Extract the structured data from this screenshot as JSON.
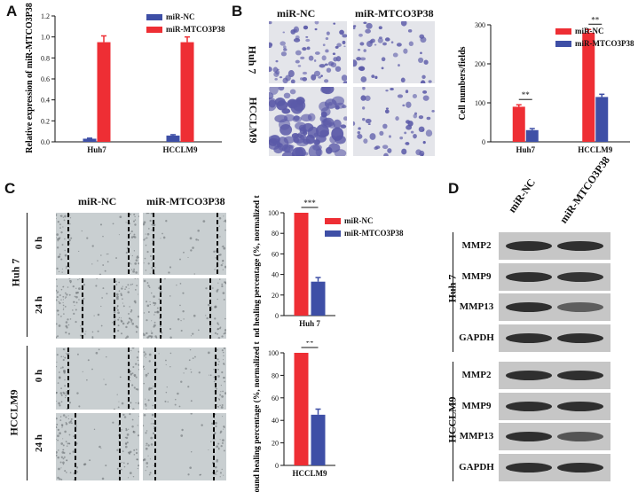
{
  "colors": {
    "red": "#ee2e34",
    "blue": "#3e4fa6",
    "stain": "#5b5aa8",
    "scratch": "#c9cfd1"
  },
  "panels": {
    "a": "A",
    "b": "B",
    "c": "C",
    "d": "D"
  },
  "panelB": {
    "col_labels": [
      "miR-NC",
      "miR-MTCO3P38"
    ],
    "row_labels": [
      "Huh 7",
      "HCCLM9"
    ]
  },
  "panelC": {
    "col_labels": [
      "miR-NC",
      "miR-MTCO3P38"
    ],
    "group_labels": [
      "Huh 7",
      "HCCLM9"
    ],
    "time_labels": [
      "0 h",
      "24 h"
    ]
  },
  "panelD": {
    "col_labels": [
      "miR-NC",
      "miR-MTCO3P38"
    ],
    "group_labels": [
      "Huh 7",
      "HCCLM9"
    ],
    "bands": [
      "MMP2",
      "MMP9",
      "MMP13",
      "GAPDH"
    ]
  },
  "chart_data": [
    {
      "id": "A",
      "type": "bar",
      "categories": [
        "Huh7",
        "HCCLM9"
      ],
      "series": [
        {
          "name": "miR-NC",
          "values": [
            0.03,
            0.06
          ],
          "errors": [
            0.005,
            0.008
          ]
        },
        {
          "name": "miR-MTCO3P38",
          "values": [
            0.95,
            0.95
          ],
          "errors": [
            0.06,
            0.05
          ]
        }
      ],
      "ylabel": "Relative expression of miR-MTCO3P38",
      "ylim": [
        0,
        1.2
      ],
      "yticks": [
        "0.0",
        "0.2",
        "0.4",
        "0.6",
        "0.8",
        "1.0",
        "1.2"
      ],
      "legend": "top-right"
    },
    {
      "id": "B",
      "type": "bar",
      "categories": [
        "Huh7",
        "HCCLM9"
      ],
      "series": [
        {
          "name": "miR-NC",
          "values": [
            90,
            280
          ],
          "errors": [
            5,
            8
          ]
        },
        {
          "name": "miR-MTCO3P38",
          "values": [
            30,
            115
          ],
          "errors": [
            4,
            7
          ]
        }
      ],
      "ylabel": "Cell numbers/fields",
      "ylim": [
        0,
        300
      ],
      "yticks": [
        "0",
        "100",
        "200",
        "300"
      ],
      "significance": [
        "**",
        "**"
      ],
      "legend": "top-right"
    },
    {
      "id": "C-Huh7",
      "type": "bar",
      "categories": [
        "Huh 7"
      ],
      "series": [
        {
          "name": "miR-NC",
          "values": [
            100
          ],
          "errors": [
            0
          ]
        },
        {
          "name": "miR-MTCO3P38",
          "values": [
            33
          ],
          "errors": [
            4
          ]
        }
      ],
      "ylabel": "Wound healing percentage (%, normalized to NC)",
      "ylim": [
        0,
        100
      ],
      "yticks": [
        "0",
        "20",
        "40",
        "60",
        "80",
        "100"
      ],
      "significance": [
        "***"
      ],
      "legend": "top-right"
    },
    {
      "id": "C-HCCLM9",
      "type": "bar",
      "categories": [
        "HCCLM9"
      ],
      "series": [
        {
          "name": "miR-NC",
          "values": [
            100
          ],
          "errors": [
            0
          ]
        },
        {
          "name": "miR-MTCO3P38",
          "values": [
            45
          ],
          "errors": [
            5
          ]
        }
      ],
      "ylabel": "Wound healing percentage (%, normalized to NC)",
      "ylim": [
        0,
        100
      ],
      "yticks": [
        "0",
        "20",
        "40",
        "60",
        "80",
        "100"
      ],
      "significance": [
        "**"
      ]
    }
  ]
}
